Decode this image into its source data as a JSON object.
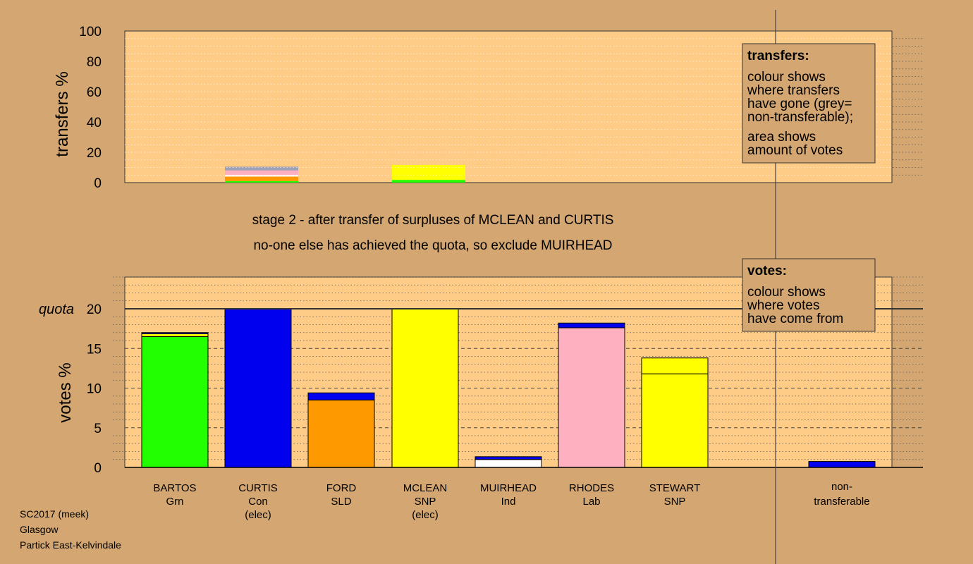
{
  "colors": {
    "background": "#d4a772",
    "plot_bg": "#ffcc88",
    "Grn": "#22ff00",
    "Con": "#0000ee",
    "SLD": "#ff9900",
    "SNP": "#ffff00",
    "Ind": "#ffffff",
    "Lab": "#ffb0c0",
    "grey": "#a0a0b8"
  },
  "stage": {
    "line1": "stage 2 - after transfer of surpluses of MCLEAN and CURTIS",
    "line2": "no-one else has achieved the quota, so exclude MUIRHEAD"
  },
  "footer": {
    "line1": "SC2017 (meek)",
    "line2": "Glasgow",
    "line3": "Partick East-Kelvindale"
  },
  "legend_transfers": {
    "title": "transfers:",
    "lines": [
      "colour shows",
      "where transfers",
      "have gone (grey=",
      "non-transferable);"
    ],
    "lines2": [
      "area shows",
      "amount of votes"
    ]
  },
  "legend_votes": {
    "title": "votes:",
    "lines": [
      "colour shows",
      "where votes",
      "have come from"
    ]
  },
  "chart_data": [
    {
      "type": "bar",
      "title": "transfers",
      "ylabel": "transfers %",
      "ylim": [
        0,
        100
      ],
      "yticks": [
        0,
        20,
        40,
        60,
        80,
        100
      ],
      "grid": true,
      "bars": [
        {
          "index": 1,
          "segments": [
            {
              "party": "Grn",
              "value": 1.0
            },
            {
              "party": "SLD",
              "value": 3.0
            },
            {
              "party": "Ind",
              "value": 1.0
            },
            {
              "party": "Lab",
              "value": 3.0
            },
            {
              "party": "grey",
              "value": 2.5
            }
          ]
        },
        {
          "index": 3,
          "segments": [
            {
              "party": "Grn",
              "value": 1.8
            },
            {
              "party": "SNP",
              "value": 9.8
            }
          ]
        }
      ]
    },
    {
      "type": "bar",
      "title": "votes",
      "ylabel": "votes %",
      "ylim": [
        0,
        24
      ],
      "yticks": [
        0,
        5,
        10,
        15,
        20
      ],
      "quota": 20,
      "quota_label": "quota",
      "grid": true,
      "categories": [
        {
          "name": "BARTOS",
          "party": "Grn",
          "note": ""
        },
        {
          "name": "CURTIS",
          "party": "Con",
          "note": "(elec)"
        },
        {
          "name": "FORD",
          "party": "SLD",
          "note": ""
        },
        {
          "name": "MCLEAN",
          "party": "SNP",
          "note": "(elec)"
        },
        {
          "name": "MUIRHEAD",
          "party": "Ind",
          "note": ""
        },
        {
          "name": "RHODES",
          "party": "Lab",
          "note": ""
        },
        {
          "name": "STEWART",
          "party": "SNP",
          "note": ""
        }
      ],
      "nontransferable_label": [
        "non-",
        "transferable"
      ],
      "stacks": [
        [
          {
            "party": "Grn",
            "value": 16.5
          },
          {
            "party": "SNP",
            "value": 0.35
          },
          {
            "party": "Con",
            "value": 0.15
          }
        ],
        [
          {
            "party": "Con",
            "value": 20.0
          }
        ],
        [
          {
            "party": "SLD",
            "value": 8.5
          },
          {
            "party": "Con",
            "value": 0.9
          }
        ],
        [
          {
            "party": "SNP",
            "value": 20.0
          }
        ],
        [
          {
            "party": "Ind",
            "value": 1.0
          },
          {
            "party": "Con",
            "value": 0.35
          }
        ],
        [
          {
            "party": "Lab",
            "value": 17.6
          },
          {
            "party": "Con",
            "value": 0.6
          }
        ],
        [
          {
            "party": "SNP",
            "value": 11.8
          },
          {
            "party": "SNP",
            "value": 2.0
          }
        ],
        [
          {
            "party": "Con",
            "value": 0.75
          }
        ]
      ]
    }
  ]
}
